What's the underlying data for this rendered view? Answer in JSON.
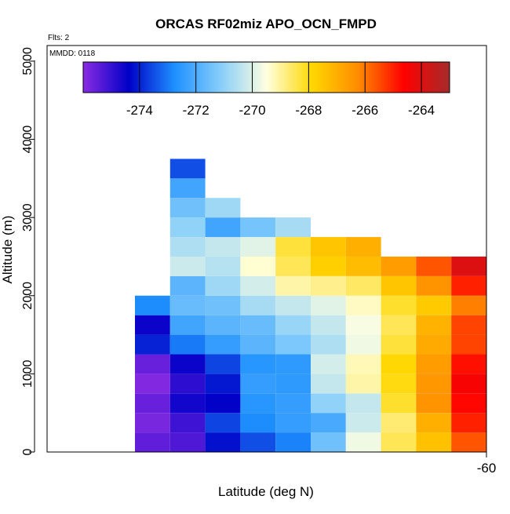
{
  "chart_data": {
    "type": "heatmap",
    "title": "ORCAS RF02miz APO_OCN_FMPD",
    "annotations": {
      "flights": "Flts: 2",
      "date": "MMDD: 0118"
    },
    "xlabel": "Latitude (deg N)",
    "ylabel": "Altitude (m)",
    "xlim": [
      -72.5,
      -60
    ],
    "ylim": [
      0,
      5200
    ],
    "xticks": [
      -60
    ],
    "yticks": [
      0,
      1000,
      2000,
      3000,
      4000,
      5000
    ],
    "colorbar": {
      "vmin": -276,
      "vmax": -263,
      "ticks": [
        -274,
        -272,
        -270,
        -268,
        -266,
        -264
      ],
      "colors": [
        "#8A2BE2",
        "#0000C8",
        "#1E90FF",
        "#87CEFA",
        "#FFFFE0",
        "#FFD700",
        "#FF8C00",
        "#FF0000",
        "#A52A2A"
      ]
    },
    "bin": {
      "lat_width": 1,
      "alt_height": 250
    },
    "columns": [
      {
        "lat": -69.5,
        "alt_start": 0,
        "values": [
          -275.5,
          -275.8,
          -275.6,
          -275.9,
          -275.6,
          -274.0,
          -274.5,
          -272.8
        ]
      },
      {
        "lat": -68.5,
        "alt_start": 0,
        "values": [
          -275.3,
          -275.1,
          -274.6,
          -274.9,
          -274.5,
          -273.0,
          -272.2,
          -271.6,
          -271.8,
          -270.2,
          -270.6,
          -271.0,
          -271.5,
          -272.2,
          -273.5
        ]
      },
      {
        "lat": -67.5,
        "alt_start": 0,
        "values": [
          -274.2,
          -273.6,
          -274.4,
          -274.1,
          -273.6,
          -272.4,
          -271.8,
          -271.5,
          -270.8,
          -270.5,
          -270.3,
          -272.2,
          -270.8
        ]
      },
      {
        "lat": -66.5,
        "alt_start": 0,
        "values": [
          -273.5,
          -272.8,
          -272.6,
          -272.4,
          -272.6,
          -271.8,
          -271.6,
          -270.7,
          -270.1,
          -269.4,
          -269.9,
          -271.4
        ]
      },
      {
        "lat": -65.5,
        "alt_start": 0,
        "values": [
          -272.9,
          -272.4,
          -272.4,
          -272.5,
          -272.5,
          -271.3,
          -270.9,
          -270.3,
          -269.1,
          -268.5,
          -268.3,
          -270.7
        ]
      },
      {
        "lat": -64.5,
        "alt_start": 0,
        "values": [
          -271.5,
          -272.1,
          -271.0,
          -270.3,
          -270.1,
          -270.6,
          -270.3,
          -269.9,
          -268.9,
          -267.7,
          -267.5
        ]
      },
      {
        "lat": -63.5,
        "alt_start": 0,
        "values": [
          -269.7,
          -270.2,
          -270.3,
          -269.1,
          -269.2,
          -269.7,
          -269.6,
          -269.3,
          -268.6,
          -267.3,
          -267.0
        ]
      },
      {
        "lat": -62.5,
        "alt_start": 0,
        "values": [
          -268.5,
          -268.7,
          -268.2,
          -268.0,
          -267.9,
          -268.3,
          -268.5,
          -268.2,
          -267.5,
          -266.6
        ]
      },
      {
        "lat": -61.5,
        "alt_start": 0,
        "values": [
          -267.4,
          -267.0,
          -266.4,
          -266.5,
          -266.6,
          -266.9,
          -267.1,
          -267.6,
          -266.4,
          -265.6
        ]
      },
      {
        "lat": -60.5,
        "alt_start": 0,
        "values": [
          -265.6,
          -265.0,
          -264.7,
          -264.5,
          -264.8,
          -265.4,
          -265.4,
          -266.1,
          -265.0,
          -264.0
        ]
      }
    ]
  }
}
